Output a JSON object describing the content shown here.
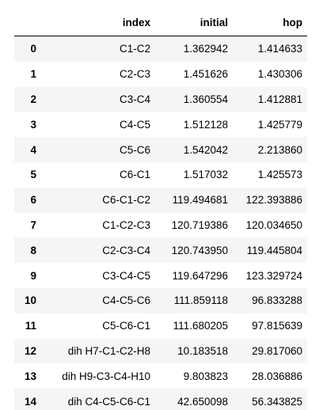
{
  "table": {
    "headers": [
      "",
      "index",
      "initial",
      "hop"
    ],
    "rows": [
      {
        "i": "0",
        "index": "C1-C2",
        "initial": "1.362942",
        "hop": "1.414633"
      },
      {
        "i": "1",
        "index": "C2-C3",
        "initial": "1.451626",
        "hop": "1.430306"
      },
      {
        "i": "2",
        "index": "C3-C4",
        "initial": "1.360554",
        "hop": "1.412881"
      },
      {
        "i": "3",
        "index": "C4-C5",
        "initial": "1.512128",
        "hop": "1.425779"
      },
      {
        "i": "4",
        "index": "C5-C6",
        "initial": "1.542042",
        "hop": "2.213860"
      },
      {
        "i": "5",
        "index": "C6-C1",
        "initial": "1.517032",
        "hop": "1.425573"
      },
      {
        "i": "6",
        "index": "C6-C1-C2",
        "initial": "119.494681",
        "hop": "122.393886"
      },
      {
        "i": "7",
        "index": "C1-C2-C3",
        "initial": "120.719386",
        "hop": "120.034650"
      },
      {
        "i": "8",
        "index": "C2-C3-C4",
        "initial": "120.743950",
        "hop": "119.445804"
      },
      {
        "i": "9",
        "index": "C3-C4-C5",
        "initial": "119.647296",
        "hop": "123.329724"
      },
      {
        "i": "10",
        "index": "C4-C5-C6",
        "initial": "111.859118",
        "hop": "96.833288"
      },
      {
        "i": "11",
        "index": "C5-C6-C1",
        "initial": "111.680205",
        "hop": "97.815639"
      },
      {
        "i": "12",
        "index": "dih H7-C1-C2-H8",
        "initial": "10.183518",
        "hop": "29.817060"
      },
      {
        "i": "13",
        "index": "dih H9-C3-C4-H10",
        "initial": "9.803823",
        "hop": "28.036886"
      },
      {
        "i": "14",
        "index": "dih C4-C5-C6-C1",
        "initial": "42.650098",
        "hop": "56.343825"
      }
    ]
  },
  "colors": {
    "stripe": "#f5f5f5",
    "background": "#ffffff",
    "header_rule": "#000000"
  }
}
